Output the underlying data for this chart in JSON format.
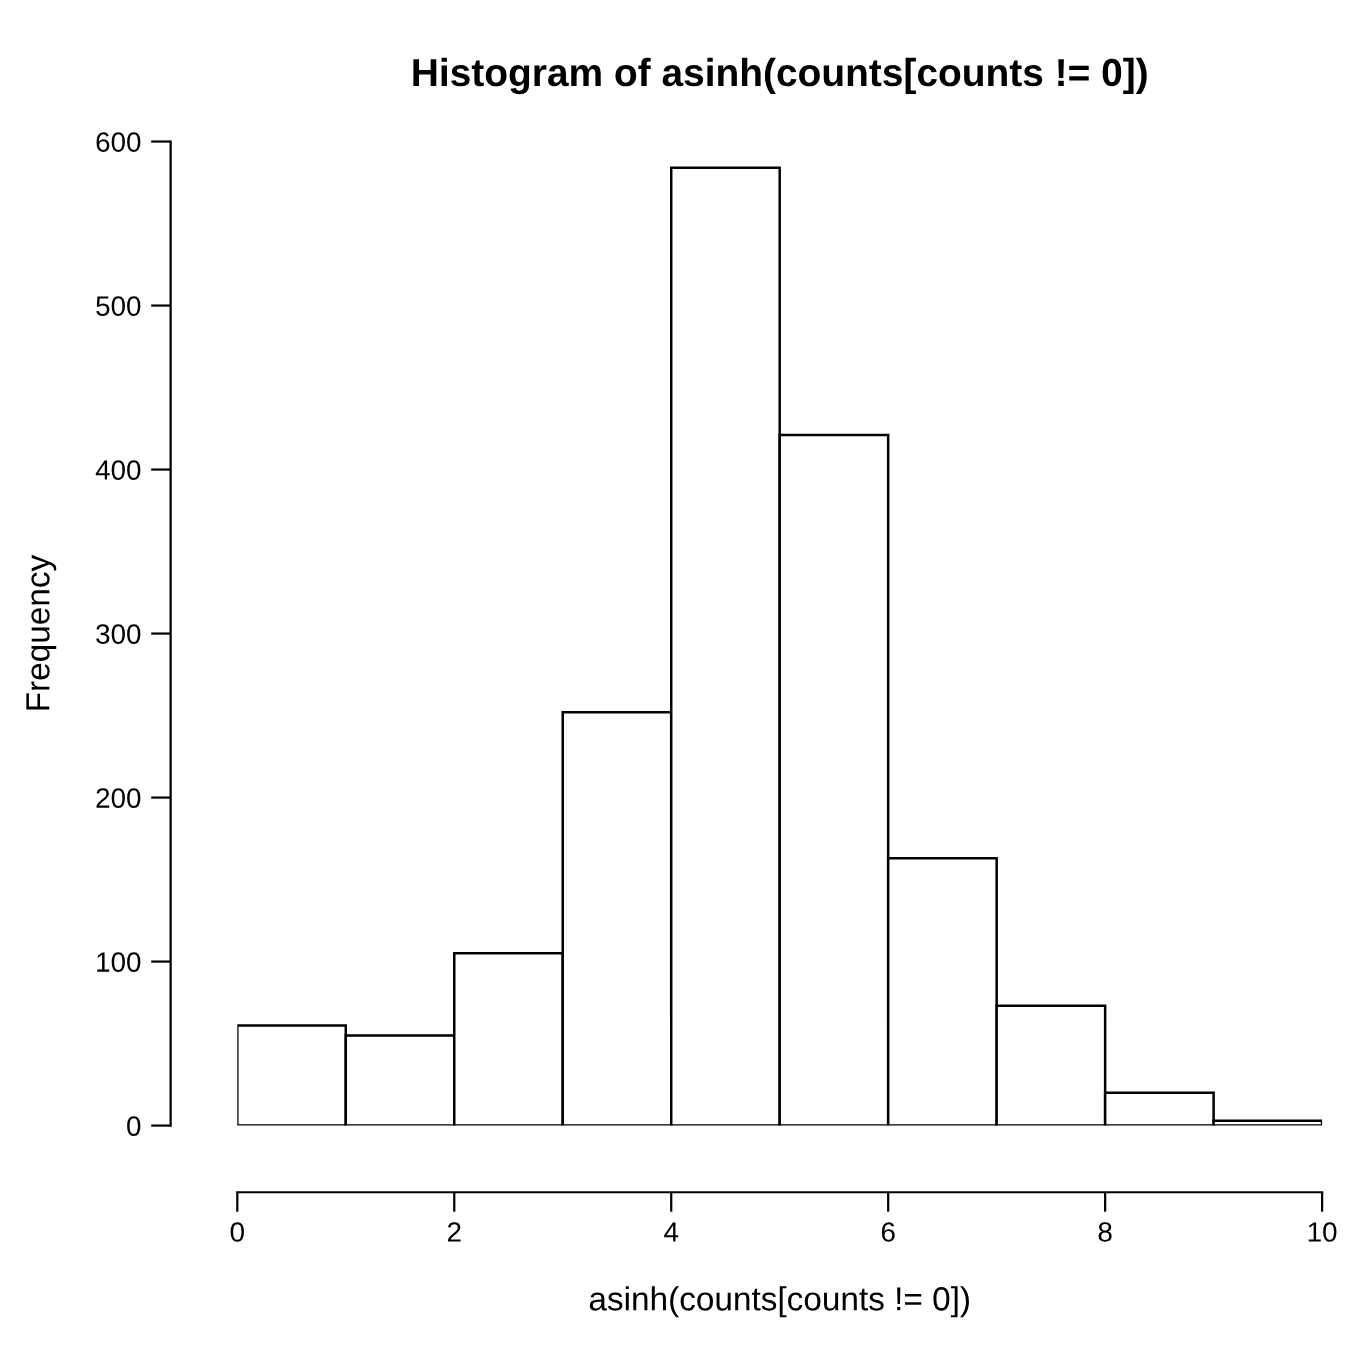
{
  "chart_data": {
    "type": "histogram",
    "title": "Histogram of asinh(counts[counts != 0])",
    "xlabel": "asinh(counts[counts != 0])",
    "ylabel": "Frequency",
    "bins": [
      0,
      1,
      2,
      3,
      4,
      5,
      6,
      7,
      8,
      9,
      10
    ],
    "values": [
      61,
      55,
      105,
      252,
      584,
      421,
      163,
      73,
      20,
      3
    ],
    "color": "#ffffff",
    "xlim": [
      0,
      10
    ],
    "ylim": [
      0,
      600
    ],
    "xticks": [
      0,
      2,
      4,
      6,
      8,
      10
    ],
    "yticks": [
      0,
      100,
      200,
      300,
      400,
      500,
      600
    ],
    "grid": false,
    "legend": false
  }
}
